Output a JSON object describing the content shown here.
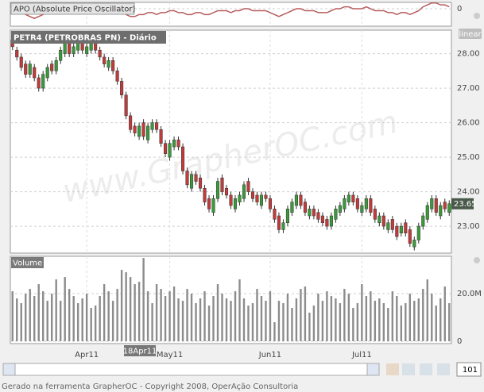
{
  "chart_data": [
    {
      "type": "line",
      "legend": "APO (Absolute Price Oscillator)",
      "color": "#b85c5c",
      "values": [
        0.0,
        -0.1,
        -0.2,
        -0.3,
        -0.4,
        -0.5,
        -0.4,
        -0.3,
        -0.2,
        -0.1,
        0.0,
        0.1,
        0.1,
        0.1,
        0.2,
        0.1,
        0.1,
        0.1,
        0.2,
        0.1,
        0.1,
        0.0,
        0.0,
        -0.1,
        -0.1,
        -0.2,
        -0.3,
        -0.4,
        -0.4,
        -0.3,
        -0.3,
        -0.2,
        -0.2,
        -0.3,
        -0.2,
        -0.2,
        -0.1,
        -0.1,
        -0.2,
        -0.2,
        -0.3,
        -0.3,
        -0.2,
        -0.2,
        -0.3,
        -0.3,
        -0.2,
        -0.1,
        -0.1,
        -0.1,
        -0.2,
        -0.1,
        -0.1,
        0.0,
        0.0,
        -0.1,
        -0.1,
        -0.1,
        -0.1,
        -0.2,
        -0.3,
        -0.4,
        -0.3,
        -0.2,
        -0.1,
        0.0,
        0.0,
        -0.1,
        -0.1,
        -0.1,
        -0.2,
        -0.2,
        -0.2,
        -0.1,
        0.0,
        0.0,
        0.1,
        0.1,
        0.0,
        0.0,
        0.0,
        0.1,
        0.0,
        -0.1,
        -0.1,
        -0.1,
        -0.2,
        -0.2,
        -0.3,
        -0.2,
        -0.2,
        -0.3,
        -0.2,
        -0.1,
        0.1,
        0.2,
        0.3,
        0.3,
        0.2,
        0.2,
        0.1
      ],
      "ylim": [
        -0.9,
        0.33
      ],
      "yticks": [
        0
      ]
    },
    {
      "type": "candlestick",
      "legend": "PETR4 (PETROBRAS  PN) - Diário",
      "up_color": "#3a9a3a",
      "down_color": "#c23b3b",
      "grid": true,
      "scale": "linear",
      "open": [
        28.4,
        28.1,
        27.9,
        27.7,
        27.4,
        27.6,
        27.3,
        27.0,
        27.3,
        27.7,
        27.5,
        27.8,
        28.0,
        28.3,
        28.0,
        28.1,
        28.4,
        28.0,
        28.1,
        28.4,
        28.1,
        27.9,
        27.6,
        27.8,
        27.5,
        27.2,
        26.8,
        26.2,
        25.9,
        25.6,
        26.0,
        25.5,
        25.8,
        26.0,
        25.8,
        25.4,
        25.0,
        25.3,
        25.5,
        25.3,
        24.6,
        24.1,
        24.5,
        24.4,
        24.1,
        23.8,
        23.4,
        23.8,
        24.4,
        24.1,
        23.9,
        23.5,
        23.7,
        23.8,
        24.3,
        24.0,
        23.9,
        23.6,
        23.9,
        23.8,
        23.5,
        23.3,
        22.9,
        23.1,
        23.4,
        23.6,
        23.9,
        23.7,
        23.3,
        23.5,
        23.4,
        23.3,
        23.2,
        23.0,
        23.2,
        23.4,
        23.5,
        23.7,
        23.9,
        23.8,
        23.4,
        23.5,
        23.8,
        23.5,
        23.1,
        23.3,
        22.9,
        23.2,
        23.0,
        22.8,
        23.1,
        22.9,
        22.4,
        22.6,
        23.0,
        23.2,
        23.5,
        23.8,
        23.3,
        23.7,
        23.4
      ],
      "high": [
        28.5,
        28.2,
        28.0,
        27.8,
        27.8,
        27.7,
        27.4,
        27.5,
        27.7,
        27.8,
        27.9,
        28.2,
        28.4,
        28.4,
        28.3,
        28.4,
        28.5,
        28.3,
        28.5,
        28.5,
        28.2,
        28.0,
        27.9,
        27.9,
        27.6,
        27.3,
        26.9,
        26.3,
        26.0,
        26.0,
        26.1,
        26.0,
        26.1,
        26.1,
        25.9,
        25.5,
        25.5,
        25.6,
        25.6,
        25.4,
        24.7,
        24.6,
        24.6,
        24.5,
        24.2,
        23.9,
        23.9,
        24.4,
        24.5,
        24.2,
        24.0,
        23.9,
        24.0,
        24.3,
        24.4,
        24.1,
        24.0,
        24.0,
        24.0,
        23.9,
        23.6,
        23.4,
        23.2,
        23.6,
        23.8,
        24.0,
        24.0,
        23.8,
        23.6,
        23.6,
        23.5,
        23.4,
        23.3,
        23.4,
        23.6,
        23.7,
        23.9,
        24.0,
        24.0,
        23.9,
        23.7,
        23.9,
        23.9,
        23.6,
        23.4,
        23.4,
        23.2,
        23.3,
        23.1,
        23.1,
        23.2,
        23.0,
        22.7,
        23.1,
        23.4,
        23.7,
        23.9,
        23.9,
        23.7,
        23.8,
        23.75
      ],
      "low": [
        28.1,
        27.8,
        27.5,
        27.3,
        27.3,
        27.2,
        26.9,
        26.9,
        27.2,
        27.4,
        27.4,
        27.7,
        27.9,
        27.9,
        27.9,
        28.0,
        28.0,
        27.9,
        28.0,
        28.0,
        27.8,
        27.6,
        27.5,
        27.4,
        27.1,
        26.7,
        26.1,
        25.7,
        25.6,
        25.5,
        25.5,
        25.4,
        25.7,
        25.7,
        25.3,
        25.0,
        24.9,
        25.2,
        25.2,
        24.5,
        24.1,
        24.0,
        24.2,
        24.0,
        23.6,
        23.4,
        23.3,
        23.7,
        23.9,
        23.8,
        23.5,
        23.4,
        23.6,
        23.7,
        23.9,
        23.7,
        23.6,
        23.5,
        23.7,
        23.4,
        23.1,
        22.8,
        22.8,
        23.0,
        23.3,
        23.5,
        23.5,
        23.3,
        23.2,
        23.2,
        23.1,
        23.0,
        22.9,
        22.9,
        23.1,
        23.3,
        23.4,
        23.6,
        23.6,
        23.4,
        23.3,
        23.4,
        23.3,
        23.1,
        23.0,
        22.9,
        22.8,
        22.8,
        22.6,
        22.7,
        22.7,
        22.4,
        22.3,
        22.5,
        22.9,
        23.1,
        23.4,
        23.3,
        23.2,
        23.4,
        23.3
      ],
      "close": [
        28.2,
        27.9,
        27.6,
        27.4,
        27.7,
        27.3,
        27.0,
        27.4,
        27.6,
        27.5,
        27.8,
        28.1,
        28.3,
        28.0,
        28.2,
        28.3,
        28.1,
        28.2,
        28.4,
        28.1,
        27.9,
        27.7,
        27.8,
        27.5,
        27.2,
        26.8,
        26.2,
        25.8,
        25.7,
        25.9,
        25.6,
        25.9,
        26.0,
        25.8,
        25.4,
        25.1,
        25.4,
        25.5,
        25.3,
        24.6,
        24.2,
        24.5,
        24.3,
        24.1,
        23.7,
        23.5,
        23.8,
        24.3,
        24.0,
        23.9,
        23.6,
        23.8,
        23.9,
        24.2,
        24.0,
        23.8,
        23.7,
        23.9,
        23.8,
        23.5,
        23.2,
        22.9,
        23.1,
        23.5,
        23.7,
        23.9,
        23.6,
        23.4,
        23.5,
        23.3,
        23.2,
        23.1,
        23.0,
        23.3,
        23.5,
        23.6,
        23.8,
        23.9,
        23.7,
        23.5,
        23.6,
        23.8,
        23.4,
        23.2,
        23.3,
        23.0,
        23.1,
        22.9,
        22.7,
        23.0,
        22.8,
        22.5,
        22.6,
        23.0,
        23.3,
        23.6,
        23.8,
        23.4,
        23.6,
        23.5,
        23.65
      ],
      "ylim": [
        22.22,
        28.68
      ],
      "yticks": [
        {
          "value": 23,
          "label": "23.00"
        },
        {
          "value": 24,
          "label": "24.00"
        },
        {
          "value": 25,
          "label": "25.00"
        },
        {
          "value": 26,
          "label": "26.00"
        },
        {
          "value": 27,
          "label": "27.00"
        },
        {
          "value": 28,
          "label": "28.00"
        }
      ]
    },
    {
      "type": "bar",
      "legend": "Volume",
      "color": "#8c8c8c",
      "values": [
        21,
        18,
        16,
        20,
        22,
        19,
        24,
        21,
        17,
        20,
        26,
        17,
        27,
        22,
        19,
        16,
        18,
        20,
        14,
        15,
        19,
        24,
        21,
        17,
        22,
        30,
        29,
        27,
        24,
        25,
        35,
        21,
        16,
        24,
        22,
        19,
        21,
        23,
        18,
        17,
        22,
        20,
        16,
        18,
        21,
        15,
        19,
        24,
        20,
        18,
        17,
        21,
        26,
        18,
        15,
        16,
        22,
        19,
        17,
        21,
        8,
        17,
        16,
        20,
        14,
        18,
        22,
        23,
        12,
        15,
        20,
        17,
        21,
        19,
        18,
        16,
        22,
        20,
        14,
        16,
        24,
        19,
        21,
        17,
        18,
        16,
        14,
        21,
        19,
        15,
        16,
        20,
        17,
        18,
        22,
        26,
        20,
        15,
        18,
        23,
        16
      ],
      "ylim": [
        -1,
        35.7
      ],
      "yticks": [
        0,
        {
          "value": 20,
          "label": "20.0M"
        }
      ],
      "xlim": [
        -0.5,
        100.5
      ],
      "xticks": [
        {
          "value": 17,
          "label": "Apr11"
        },
        {
          "value": 36,
          "label": "May11"
        },
        {
          "value": 59,
          "label": "Jun11"
        },
        {
          "value": 80,
          "label": "Jul11"
        }
      ]
    }
  ],
  "ui": {
    "cursor_label": "18Apr11",
    "watermark": "www.GrapherOC.com",
    "bars_shown": 101,
    "footer": "Gerado na ferramenta GrapherOC - Copyright 2008, OperAção Consultoria"
  }
}
